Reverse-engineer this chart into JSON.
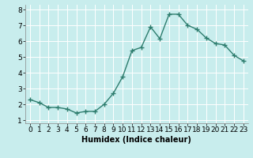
{
  "x": [
    0,
    1,
    2,
    3,
    4,
    5,
    6,
    7,
    8,
    9,
    10,
    11,
    12,
    13,
    14,
    15,
    16,
    17,
    18,
    19,
    20,
    21,
    22,
    23
  ],
  "y": [
    2.3,
    2.1,
    1.8,
    1.8,
    1.7,
    1.45,
    1.55,
    1.55,
    2.0,
    2.7,
    3.75,
    5.4,
    5.6,
    6.9,
    6.15,
    7.7,
    7.7,
    7.0,
    6.75,
    6.2,
    5.85,
    5.75,
    5.1,
    4.75
  ],
  "line_color": "#2e7d6e",
  "marker": "+",
  "marker_size": 4,
  "linewidth": 1.0,
  "xlabel": "Humidex (Indice chaleur)",
  "xlabel_fontsize": 7,
  "ylim": [
    0.8,
    8.3
  ],
  "xlim": [
    -0.5,
    23.5
  ],
  "yticks": [
    1,
    2,
    3,
    4,
    5,
    6,
    7,
    8
  ],
  "xticks": [
    0,
    1,
    2,
    3,
    4,
    5,
    6,
    7,
    8,
    9,
    10,
    11,
    12,
    13,
    14,
    15,
    16,
    17,
    18,
    19,
    20,
    21,
    22,
    23
  ],
  "bg_color": "#c8eded",
  "grid_color": "#ffffff",
  "tick_fontsize": 6.5,
  "fig_width": 3.2,
  "fig_height": 2.0,
  "dpi": 100
}
